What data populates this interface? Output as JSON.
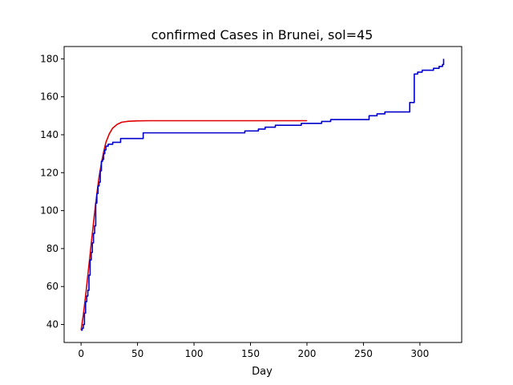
{
  "chart_data": {
    "type": "line",
    "title": "confirmed Cases in Brunei, sol=45",
    "xlabel": "Day",
    "ylabel": "",
    "xlim": [
      -15,
      337
    ],
    "ylim": [
      30.5,
      186.5
    ],
    "x_ticks": [
      0,
      50,
      100,
      150,
      200,
      250,
      300
    ],
    "y_ticks": [
      40,
      60,
      80,
      100,
      120,
      140,
      160,
      180
    ],
    "grid": false,
    "series": [
      {
        "color": "#e00000",
        "style": "smooth",
        "points": [
          [
            0,
            37
          ],
          [
            2,
            45
          ],
          [
            4,
            55
          ],
          [
            6,
            66
          ],
          [
            8,
            77
          ],
          [
            10,
            88
          ],
          [
            12,
            99
          ],
          [
            14,
            109
          ],
          [
            16,
            118
          ],
          [
            18,
            125
          ],
          [
            20,
            131
          ],
          [
            22,
            136
          ],
          [
            25,
            140.5
          ],
          [
            28,
            143.5
          ],
          [
            32,
            145.5
          ],
          [
            36,
            146.6
          ],
          [
            42,
            147.1
          ],
          [
            50,
            147.3
          ],
          [
            60,
            147.4
          ],
          [
            100,
            147.4
          ],
          [
            150,
            147.4
          ],
          [
            200,
            147.4
          ]
        ]
      },
      {
        "color": "#0000cc",
        "style": "step",
        "points": [
          [
            0,
            37
          ],
          [
            1,
            38
          ],
          [
            2,
            40
          ],
          [
            3,
            46
          ],
          [
            4,
            52
          ],
          [
            5,
            55
          ],
          [
            6,
            58
          ],
          [
            7,
            66
          ],
          [
            8,
            74
          ],
          [
            9,
            78
          ],
          [
            10,
            83
          ],
          [
            11,
            88
          ],
          [
            12,
            92
          ],
          [
            13,
            104
          ],
          [
            14,
            109
          ],
          [
            15,
            113
          ],
          [
            16,
            115
          ],
          [
            17,
            121
          ],
          [
            18,
            126
          ],
          [
            19,
            127
          ],
          [
            20,
            130
          ],
          [
            21,
            132
          ],
          [
            22,
            134
          ],
          [
            24,
            135
          ],
          [
            28,
            136
          ],
          [
            35,
            138
          ],
          [
            55,
            141
          ],
          [
            145,
            142
          ],
          [
            157,
            143
          ],
          [
            163,
            144
          ],
          [
            172,
            145
          ],
          [
            195,
            146
          ],
          [
            213,
            147
          ],
          [
            221,
            148
          ],
          [
            255,
            150
          ],
          [
            262,
            151
          ],
          [
            269,
            152
          ],
          [
            291,
            157
          ],
          [
            295,
            172
          ],
          [
            298,
            173
          ],
          [
            302,
            174
          ],
          [
            312,
            175
          ],
          [
            317,
            176
          ],
          [
            320,
            177
          ],
          [
            321,
            180
          ]
        ]
      }
    ]
  }
}
